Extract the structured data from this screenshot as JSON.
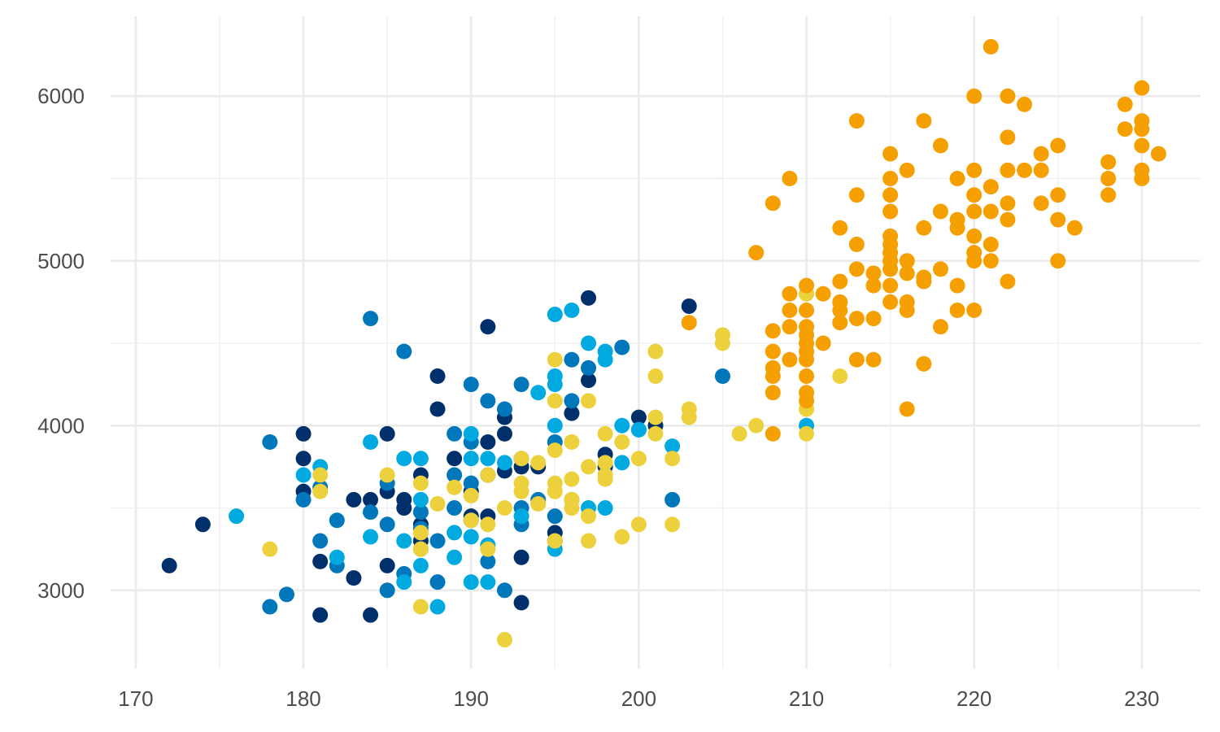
{
  "chart_data": {
    "type": "scatter",
    "title": "",
    "xlabel": "",
    "ylabel": "",
    "xlim": [
      168.5,
      233.5
    ],
    "ylim": [
      2525,
      6485
    ],
    "x_ticks": [
      170,
      180,
      190,
      200,
      210,
      220,
      230
    ],
    "y_ticks": [
      3000,
      4000,
      5000,
      6000
    ],
    "grid": true,
    "legend": "none",
    "series": [
      {
        "color": "#00306b",
        "points": [
          [
            172,
            3150
          ],
          [
            174,
            3400
          ],
          [
            180,
            3950
          ],
          [
            180,
            3800
          ],
          [
            180,
            3600
          ],
          [
            181,
            3175
          ],
          [
            181,
            2850
          ],
          [
            183,
            3550
          ],
          [
            183,
            3075
          ],
          [
            184,
            3550
          ],
          [
            184,
            2850
          ],
          [
            185,
            3950
          ],
          [
            185,
            3600
          ],
          [
            185,
            3150
          ],
          [
            186,
            3550
          ],
          [
            186,
            3500
          ],
          [
            187,
            3700
          ],
          [
            187,
            3400
          ],
          [
            187,
            3300
          ],
          [
            188,
            4300
          ],
          [
            188,
            4100
          ],
          [
            189,
            3800
          ],
          [
            190,
            3450
          ],
          [
            190,
            3600
          ],
          [
            191,
            4600
          ],
          [
            191,
            3900
          ],
          [
            191,
            3700
          ],
          [
            191,
            3450
          ],
          [
            192,
            4050
          ],
          [
            192,
            3950
          ],
          [
            192,
            3725
          ],
          [
            193,
            3750
          ],
          [
            193,
            3200
          ],
          [
            193,
            2925
          ],
          [
            194,
            3750
          ],
          [
            195,
            3350
          ],
          [
            195,
            3300
          ],
          [
            196,
            4075
          ],
          [
            197,
            4775
          ],
          [
            197,
            4275
          ],
          [
            198,
            3825
          ],
          [
            198,
            3750
          ],
          [
            200,
            4050
          ],
          [
            201,
            4000
          ],
          [
            203,
            4725
          ]
        ]
      },
      {
        "color": "#0077bb",
        "points": [
          [
            178,
            3900
          ],
          [
            178,
            2900
          ],
          [
            179,
            2975
          ],
          [
            180,
            3550
          ],
          [
            181,
            3300
          ],
          [
            181,
            3625
          ],
          [
            182,
            3150
          ],
          [
            182,
            3425
          ],
          [
            184,
            4650
          ],
          [
            184,
            3475
          ],
          [
            185,
            3400
          ],
          [
            185,
            3000
          ],
          [
            185,
            3650
          ],
          [
            186,
            4450
          ],
          [
            187,
            3375
          ],
          [
            187,
            3475
          ],
          [
            188,
            3300
          ],
          [
            188,
            3050
          ],
          [
            189,
            3500
          ],
          [
            189,
            3950
          ],
          [
            190,
            4250
          ],
          [
            190,
            3900
          ],
          [
            190,
            3650
          ],
          [
            190,
            3425
          ],
          [
            191,
            4150
          ],
          [
            191,
            3175
          ],
          [
            192,
            4100
          ],
          [
            192,
            3000
          ],
          [
            193,
            4250
          ],
          [
            193,
            3500
          ],
          [
            193,
            3400
          ],
          [
            194,
            3550
          ],
          [
            195,
            3450
          ],
          [
            195,
            3900
          ],
          [
            196,
            4400
          ],
          [
            196,
            4150
          ],
          [
            197,
            4350
          ],
          [
            199,
            4475
          ],
          [
            200,
            3975
          ],
          [
            202,
            3550
          ],
          [
            205,
            4300
          ],
          [
            186,
            3100
          ],
          [
            189,
            3700
          ],
          [
            193,
            3800
          ]
        ]
      },
      {
        "color": "#00a9e0",
        "points": [
          [
            176,
            3450
          ],
          [
            180,
            3700
          ],
          [
            181,
            3750
          ],
          [
            182,
            3200
          ],
          [
            184,
            3900
          ],
          [
            184,
            3325
          ],
          [
            186,
            3800
          ],
          [
            186,
            3300
          ],
          [
            186,
            3050
          ],
          [
            187,
            3800
          ],
          [
            187,
            3550
          ],
          [
            187,
            3150
          ],
          [
            188,
            2900
          ],
          [
            189,
            3350
          ],
          [
            189,
            3200
          ],
          [
            190,
            3950
          ],
          [
            190,
            3800
          ],
          [
            190,
            3325
          ],
          [
            190,
            3050
          ],
          [
            191,
            3800
          ],
          [
            191,
            3050
          ],
          [
            191,
            3275
          ],
          [
            193,
            3450
          ],
          [
            194,
            4200
          ],
          [
            195,
            4675
          ],
          [
            195,
            4300
          ],
          [
            195,
            4250
          ],
          [
            195,
            4000
          ],
          [
            195,
            3250
          ],
          [
            196,
            4700
          ],
          [
            196,
            3550
          ],
          [
            197,
            4500
          ],
          [
            197,
            3500
          ],
          [
            198,
            4450
          ],
          [
            198,
            4400
          ],
          [
            198,
            3500
          ],
          [
            199,
            4000
          ],
          [
            199,
            3775
          ],
          [
            200,
            3975
          ],
          [
            202,
            3875
          ],
          [
            210,
            4000
          ],
          [
            187,
            3250
          ],
          [
            192,
            3775
          ]
        ]
      },
      {
        "color": "#ecd13d",
        "points": [
          [
            178,
            3250
          ],
          [
            181,
            3700
          ],
          [
            181,
            3600
          ],
          [
            185,
            3700
          ],
          [
            187,
            3650
          ],
          [
            187,
            3350
          ],
          [
            187,
            3250
          ],
          [
            187,
            2900
          ],
          [
            188,
            3525
          ],
          [
            189,
            3625
          ],
          [
            190,
            3425
          ],
          [
            190,
            3575
          ],
          [
            191,
            3400
          ],
          [
            191,
            3700
          ],
          [
            191,
            3250
          ],
          [
            192,
            3500
          ],
          [
            192,
            2700
          ],
          [
            193,
            3800
          ],
          [
            193,
            3650
          ],
          [
            193,
            3600
          ],
          [
            194,
            3775
          ],
          [
            194,
            3525
          ],
          [
            195,
            4400
          ],
          [
            195,
            4150
          ],
          [
            195,
            3850
          ],
          [
            195,
            3650
          ],
          [
            195,
            3600
          ],
          [
            195,
            3300
          ],
          [
            196,
            3900
          ],
          [
            196,
            3675
          ],
          [
            196,
            3500
          ],
          [
            197,
            4150
          ],
          [
            197,
            3750
          ],
          [
            197,
            3450
          ],
          [
            197,
            3300
          ],
          [
            198,
            3950
          ],
          [
            198,
            3700
          ],
          [
            198,
            3675
          ],
          [
            199,
            3900
          ],
          [
            199,
            3325
          ],
          [
            200,
            3800
          ],
          [
            200,
            3400
          ],
          [
            201,
            4450
          ],
          [
            201,
            4300
          ],
          [
            201,
            4050
          ],
          [
            201,
            3950
          ],
          [
            202,
            3800
          ],
          [
            202,
            3400
          ],
          [
            203,
            4100
          ],
          [
            203,
            4050
          ],
          [
            205,
            4550
          ],
          [
            205,
            4500
          ],
          [
            206,
            3950
          ],
          [
            207,
            4000
          ],
          [
            210,
            4800
          ],
          [
            210,
            4100
          ],
          [
            210,
            3950
          ],
          [
            212,
            4300
          ],
          [
            198,
            3775
          ],
          [
            196,
            3550
          ]
        ]
      },
      {
        "color": "#f5a000",
        "points": [
          [
            203,
            4625
          ],
          [
            207,
            5050
          ],
          [
            208,
            5350
          ],
          [
            208,
            4575
          ],
          [
            208,
            4450
          ],
          [
            208,
            4350
          ],
          [
            208,
            4300
          ],
          [
            208,
            4200
          ],
          [
            208,
            3950
          ],
          [
            209,
            5500
          ],
          [
            209,
            4800
          ],
          [
            209,
            4700
          ],
          [
            209,
            4600
          ],
          [
            209,
            4400
          ],
          [
            210,
            4850
          ],
          [
            210,
            4700
          ],
          [
            210,
            4600
          ],
          [
            210,
            4550
          ],
          [
            210,
            4500
          ],
          [
            210,
            4450
          ],
          [
            210,
            4400
          ],
          [
            210,
            4300
          ],
          [
            210,
            4200
          ],
          [
            210,
            4150
          ],
          [
            211,
            4800
          ],
          [
            211,
            4500
          ],
          [
            212,
            5200
          ],
          [
            212,
            4875
          ],
          [
            212,
            4750
          ],
          [
            212,
            4700
          ],
          [
            212,
            4625
          ],
          [
            213,
            5850
          ],
          [
            213,
            5400
          ],
          [
            213,
            5100
          ],
          [
            213,
            4950
          ],
          [
            213,
            4650
          ],
          [
            213,
            4400
          ],
          [
            214,
            4925
          ],
          [
            214,
            4850
          ],
          [
            214,
            4650
          ],
          [
            214,
            4400
          ],
          [
            215,
            5650
          ],
          [
            215,
            5500
          ],
          [
            215,
            5400
          ],
          [
            215,
            5300
          ],
          [
            215,
            5150
          ],
          [
            215,
            5100
          ],
          [
            215,
            5050
          ],
          [
            215,
            5000
          ],
          [
            215,
            4950
          ],
          [
            215,
            4850
          ],
          [
            215,
            4750
          ],
          [
            216,
            5550
          ],
          [
            216,
            5000
          ],
          [
            216,
            4925
          ],
          [
            216,
            4750
          ],
          [
            216,
            4700
          ],
          [
            216,
            4100
          ],
          [
            217,
            5850
          ],
          [
            217,
            5200
          ],
          [
            217,
            4900
          ],
          [
            217,
            4875
          ],
          [
            217,
            4375
          ],
          [
            218,
            5700
          ],
          [
            218,
            5300
          ],
          [
            218,
            4950
          ],
          [
            218,
            4600
          ],
          [
            219,
            5500
          ],
          [
            219,
            5250
          ],
          [
            219,
            5200
          ],
          [
            219,
            4850
          ],
          [
            219,
            4700
          ],
          [
            220,
            6000
          ],
          [
            220,
            5550
          ],
          [
            220,
            5400
          ],
          [
            220,
            5300
          ],
          [
            220,
            5150
          ],
          [
            220,
            5050
          ],
          [
            220,
            5000
          ],
          [
            220,
            4700
          ],
          [
            221,
            6300
          ],
          [
            221,
            5450
          ],
          [
            221,
            5300
          ],
          [
            221,
            5100
          ],
          [
            221,
            5000
          ],
          [
            222,
            6000
          ],
          [
            222,
            5750
          ],
          [
            222,
            5550
          ],
          [
            222,
            5350
          ],
          [
            222,
            5250
          ],
          [
            222,
            4875
          ],
          [
            223,
            5950
          ],
          [
            223,
            5550
          ],
          [
            224,
            5650
          ],
          [
            224,
            5550
          ],
          [
            224,
            5350
          ],
          [
            225,
            5700
          ],
          [
            225,
            5400
          ],
          [
            225,
            5250
          ],
          [
            225,
            5000
          ],
          [
            226,
            5200
          ],
          [
            228,
            5600
          ],
          [
            228,
            5500
          ],
          [
            228,
            5400
          ],
          [
            229,
            5950
          ],
          [
            229,
            5800
          ],
          [
            230,
            6050
          ],
          [
            230,
            5850
          ],
          [
            230,
            5800
          ],
          [
            230,
            5700
          ],
          [
            230,
            5550
          ],
          [
            230,
            5500
          ],
          [
            231,
            5650
          ]
        ]
      }
    ]
  }
}
